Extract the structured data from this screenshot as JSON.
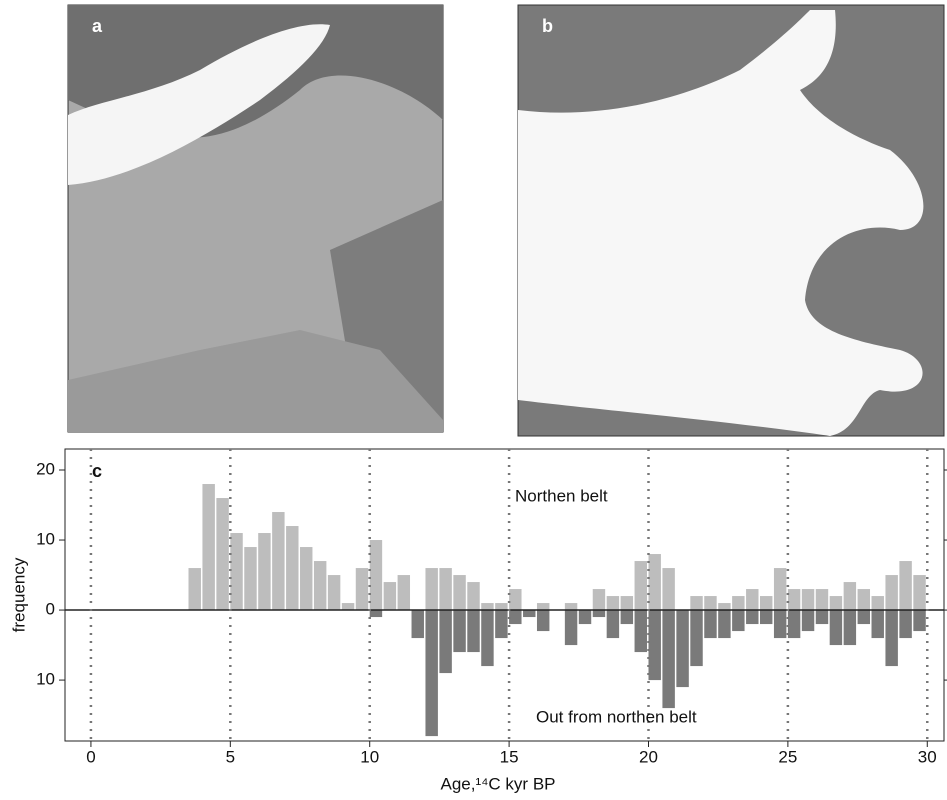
{
  "panels": [
    {
      "label": "a"
    },
    {
      "label": "b"
    }
  ],
  "chart_data": {
    "type": "histogram",
    "panel_label": "c",
    "xlabel": "Age,¹⁴C kyr BP",
    "ylabel": "frequency",
    "bins": [
      3.5,
      4,
      4.5,
      5,
      5.5,
      6,
      6.5,
      7,
      7.5,
      8,
      8.5,
      9,
      9.5,
      10,
      10.5,
      11,
      11.5,
      12,
      12.5,
      13,
      13.5,
      14,
      14.5,
      15,
      15.5,
      16,
      16.5,
      17,
      17.5,
      18,
      18.5,
      19,
      19.5,
      20,
      20.5,
      21,
      21.5,
      22,
      22.5,
      23,
      23.5,
      24,
      24.5,
      25,
      25.5,
      26,
      26.5,
      27,
      27.5,
      28,
      28.5,
      29,
      29.5,
      30
    ],
    "series": [
      {
        "name": "Northen belt",
        "color": "#bdbdbd",
        "values": [
          6,
          18,
          16,
          11,
          9,
          11,
          14,
          12,
          9,
          7,
          5,
          1,
          6,
          10,
          4,
          5,
          0,
          6,
          6,
          5,
          4,
          1,
          1,
          3,
          0,
          1,
          0,
          1,
          0,
          3,
          2,
          2,
          7,
          8,
          6,
          0,
          2,
          2,
          1,
          2,
          3,
          2,
          6,
          3,
          3,
          3,
          2,
          4,
          3,
          2,
          5,
          7,
          5
        ]
      },
      {
        "name": "Out from northen belt",
        "color": "#7a7a7a",
        "values": [
          0,
          0,
          0,
          0,
          0,
          0,
          0,
          0,
          0,
          0,
          0,
          0,
          0,
          -1,
          0,
          0,
          -4,
          -18,
          -9,
          -6,
          -6,
          -8,
          -4,
          -2,
          -1,
          -3,
          0,
          -5,
          -2,
          -1,
          -4,
          -2,
          -6,
          -10,
          -14,
          -11,
          -8,
          -4,
          -4,
          -3,
          -2,
          -2,
          -4,
          -4,
          -3,
          -2,
          -5,
          -5,
          -2,
          -4,
          -8,
          -4,
          -3
        ]
      }
    ],
    "xlim": [
      -0.93,
      30.6
    ],
    "xticks": [
      0,
      5,
      10,
      15,
      20,
      25,
      30
    ],
    "ylim": [
      -18.7,
      23
    ],
    "yticks": [
      {
        "value": -10,
        "label": "10"
      },
      0,
      10,
      20
    ],
    "grid": true
  }
}
